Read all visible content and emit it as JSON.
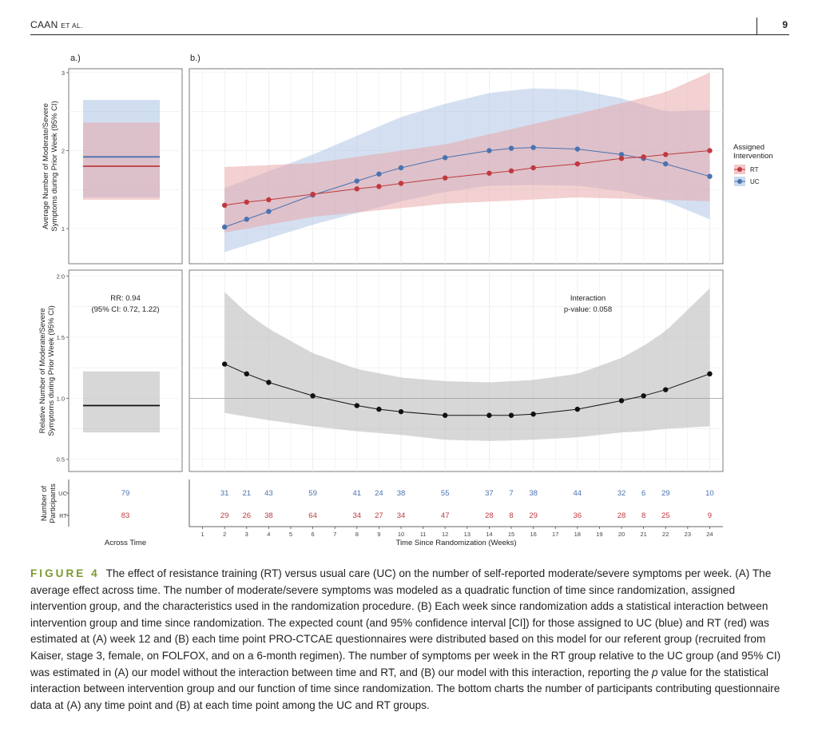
{
  "header": {
    "author": "CAAN",
    "author_suffix": "ET AL.",
    "page_number": "9"
  },
  "figure": {
    "panel_a_label": "a.)",
    "panel_b_label": "b.)",
    "top_ylabel_line1": "Average Number of Moderate/Severe",
    "top_ylabel_line2": "Symptoms during Prior Week (95% CI)",
    "mid_ylabel_line1": "Relative Number of Moderate/Severe",
    "mid_ylabel_line2": "Symptoms during Prior Week (95% CI)",
    "bottom_ylabel_line1": "Number of",
    "bottom_ylabel_line2": "Participants",
    "legend_title_line1": "Assigned",
    "legend_title_line2": "Intervention",
    "legend_items": [
      "RT",
      "UC"
    ],
    "rr_line1": "RR: 0.94",
    "rr_line2": "(95% CI: 0.72, 1.22)",
    "interaction_line1": "Interaction",
    "interaction_line2": "p-value: 0.058",
    "across_time_label": "Across Time",
    "xlabel": "Time Since Randomization (Weeks)",
    "row_labels": [
      "UC",
      "RT"
    ],
    "colors": {
      "rt": "#c0393f",
      "uc": "#4a72b0",
      "rt_band": "#e7a1a3",
      "uc_band": "#a9c2e3",
      "ratio": "#111111",
      "ratio_band": "#bdbdbd"
    }
  },
  "chart_data": [
    {
      "id": "panel_a_top",
      "type": "line",
      "title": "a.)",
      "ylabel": "Average Number of Moderate/Severe Symptoms during Prior Week (95% CI)",
      "ylim": [
        0.55,
        3.05
      ],
      "yticks": [
        1,
        2,
        3
      ],
      "series": [
        {
          "name": "RT",
          "value": 1.8,
          "lower": 1.37,
          "upper": 2.36
        },
        {
          "name": "UC",
          "value": 1.92,
          "lower": 1.4,
          "upper": 2.65
        }
      ]
    },
    {
      "id": "panel_b_top",
      "type": "line",
      "title": "b.)",
      "ylim": [
        0.55,
        3.05
      ],
      "x": [
        2,
        3,
        4,
        6,
        8,
        9,
        10,
        12,
        14,
        15,
        16,
        18,
        20,
        21,
        22,
        24
      ],
      "series": [
        {
          "name": "RT",
          "values": [
            1.3,
            1.34,
            1.37,
            1.44,
            1.51,
            1.54,
            1.58,
            1.65,
            1.71,
            1.74,
            1.78,
            1.83,
            1.9,
            1.92,
            1.95,
            2.0
          ]
        },
        {
          "name": "UC",
          "values": [
            1.02,
            1.12,
            1.22,
            1.43,
            1.61,
            1.7,
            1.78,
            1.91,
            2.0,
            2.03,
            2.04,
            2.02,
            1.95,
            1.9,
            1.83,
            1.67
          ]
        }
      ],
      "bands": [
        {
          "name": "RT",
          "x": [
            2,
            6,
            12,
            18,
            22,
            24
          ],
          "lower": [
            0.95,
            1.15,
            1.32,
            1.4,
            1.37,
            1.35
          ],
          "upper": [
            1.79,
            1.84,
            2.08,
            2.47,
            2.75,
            3.0
          ]
        },
        {
          "name": "UC",
          "x": [
            2,
            6,
            10,
            12,
            14,
            16,
            18,
            20,
            22,
            24
          ],
          "lower": [
            0.7,
            1.05,
            1.35,
            1.47,
            1.55,
            1.56,
            1.55,
            1.48,
            1.35,
            1.12
          ],
          "upper": [
            1.52,
            1.95,
            2.43,
            2.6,
            2.74,
            2.8,
            2.78,
            2.67,
            2.5,
            2.52
          ]
        }
      ],
      "legend": {
        "title": "Assigned Intervention",
        "entries": [
          "RT",
          "UC"
        ],
        "position": "right"
      }
    },
    {
      "id": "panel_a_mid",
      "type": "line",
      "ylabel": "Relative Number of Moderate/Severe Symptoms during Prior Week (95% CI)",
      "ylim": [
        0.4,
        2.05
      ],
      "yticks": [
        0.5,
        1.0,
        1.5,
        2.0
      ],
      "ytick_labels": [
        "0.5",
        "1.0",
        "1.5",
        "2.0"
      ],
      "series": [
        {
          "name": "RR",
          "value": 0.94,
          "lower": 0.72,
          "upper": 1.22
        }
      ],
      "annotation": "RR: 0.94 (95% CI: 0.72, 1.22)"
    },
    {
      "id": "panel_b_mid",
      "type": "line",
      "ylim": [
        0.4,
        2.05
      ],
      "reference_line": 1.0,
      "x": [
        2,
        3,
        4,
        6,
        8,
        9,
        10,
        12,
        14,
        15,
        16,
        18,
        20,
        21,
        22,
        24
      ],
      "series": [
        {
          "name": "Relative",
          "values": [
            1.28,
            1.2,
            1.13,
            1.02,
            0.94,
            0.91,
            0.89,
            0.86,
            0.86,
            0.86,
            0.87,
            0.91,
            0.98,
            1.02,
            1.07,
            1.2
          ]
        }
      ],
      "bands": [
        {
          "name": "Relative",
          "x": [
            2,
            3,
            4,
            6,
            8,
            10,
            12,
            14,
            16,
            18,
            20,
            21,
            22,
            24
          ],
          "lower": [
            0.88,
            0.85,
            0.82,
            0.77,
            0.73,
            0.7,
            0.66,
            0.65,
            0.66,
            0.68,
            0.72,
            0.73,
            0.75,
            0.77
          ],
          "upper": [
            1.87,
            1.7,
            1.57,
            1.37,
            1.24,
            1.17,
            1.14,
            1.13,
            1.15,
            1.2,
            1.33,
            1.43,
            1.55,
            1.9
          ]
        }
      ],
      "annotation": "Interaction p-value: 0.058"
    },
    {
      "id": "participants",
      "type": "table",
      "rows": [
        "UC",
        "RT"
      ],
      "across_time": {
        "UC": 79,
        "RT": 83
      },
      "x": [
        2,
        3,
        4,
        6,
        8,
        9,
        10,
        12,
        14,
        15,
        16,
        18,
        20,
        21,
        22,
        24
      ],
      "UC": [
        31,
        21,
        43,
        59,
        41,
        24,
        38,
        55,
        37,
        7,
        38,
        44,
        32,
        6,
        29,
        10
      ],
      "RT": [
        29,
        26,
        38,
        64,
        34,
        27,
        34,
        47,
        28,
        8,
        29,
        36,
        28,
        8,
        25,
        9
      ],
      "xticks": [
        1,
        2,
        3,
        4,
        5,
        6,
        7,
        8,
        9,
        10,
        11,
        12,
        13,
        14,
        15,
        16,
        17,
        18,
        19,
        20,
        21,
        22,
        23,
        24
      ],
      "xlabel": "Time Since Randomization (Weeks)",
      "panel_a_xlabel": "Across Time"
    }
  ],
  "caption": {
    "label": "FIGURE 4",
    "text_part1": "The effect of resistance training (RT) versus usual care (UC) on the number of self-reported moderate/severe symptoms per week. (A) The average effect across time. The number of moderate/severe symptoms was modeled as a quadratic function of time since randomization, assigned intervention group, and the characteristics used in the randomization procedure. (B) Each week since randomization adds a statistical interaction between intervention group and time since randomization. The expected count (and 95% confidence interval [CI]) for those assigned to UC (blue) and RT (red) was estimated at (A) week 12 and (B) each time point PRO-CTCAE questionnaires were distributed based on this model for our referent group (recruited from Kaiser, stage 3, female, on FOLFOX, and on a 6-month regimen). The number of symptoms per week in the RT group relative to the UC group (and 95% CI) was estimated in (A) our model without the interaction between time and RT, and (B) our model with this interaction, reporting the ",
    "italic_p": "p",
    "text_part2": " value for the statistical interaction between intervention group and our function of time since randomization. The bottom charts the number of participants contributing questionnaire data at (A) any time point and (B) at each time point among the UC and RT groups."
  }
}
